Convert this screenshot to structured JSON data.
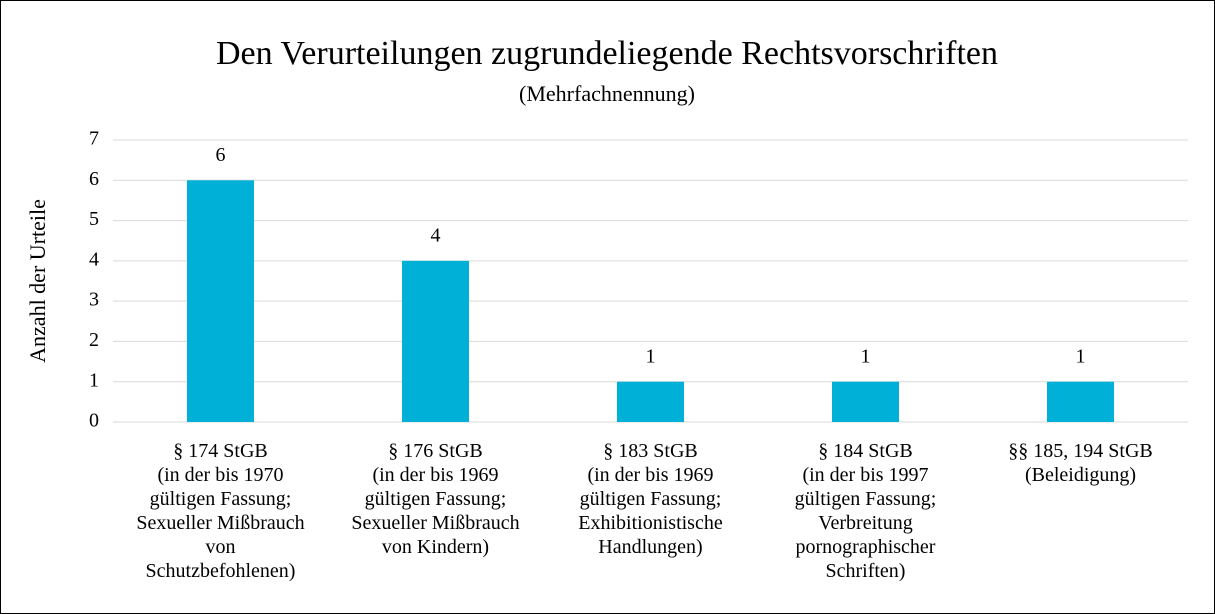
{
  "chart_data": {
    "type": "bar",
    "title": "Den Verurteilungen zugrundeliegende Rechtsvorschriften",
    "subtitle": "(Mehrfachnennung)",
    "y_label": "Anzahl der Urteile",
    "categories": [
      [
        "§ 174 StGB",
        "(in der bis 1970",
        "gültigen Fassung;",
        "Sexueller Mißbrauch",
        "von",
        "Schutzbefohlenen)"
      ],
      [
        "§ 176 StGB",
        "(in der bis 1969",
        "gültigen Fassung;",
        "Sexueller Mißbrauch",
        "von Kindern)"
      ],
      [
        "§ 183 StGB",
        "(in der bis 1969",
        "gültigen Fassung;",
        "Exhibitionistische",
        "Handlungen)"
      ],
      [
        "§ 184 StGB",
        "(in der bis 1997",
        "gültigen Fassung;",
        "Verbreitung",
        "pornographischer",
        "Schriften)"
      ],
      [
        "§§ 185, 194 StGB",
        "(Beleidigung)"
      ]
    ],
    "values": [
      6,
      4,
      1,
      1,
      1
    ],
    "color": "#00b0d6",
    "ylim": [
      0,
      7
    ],
    "yticks": [
      0,
      1,
      2,
      3,
      4,
      5,
      6,
      7
    ],
    "grid": true
  }
}
